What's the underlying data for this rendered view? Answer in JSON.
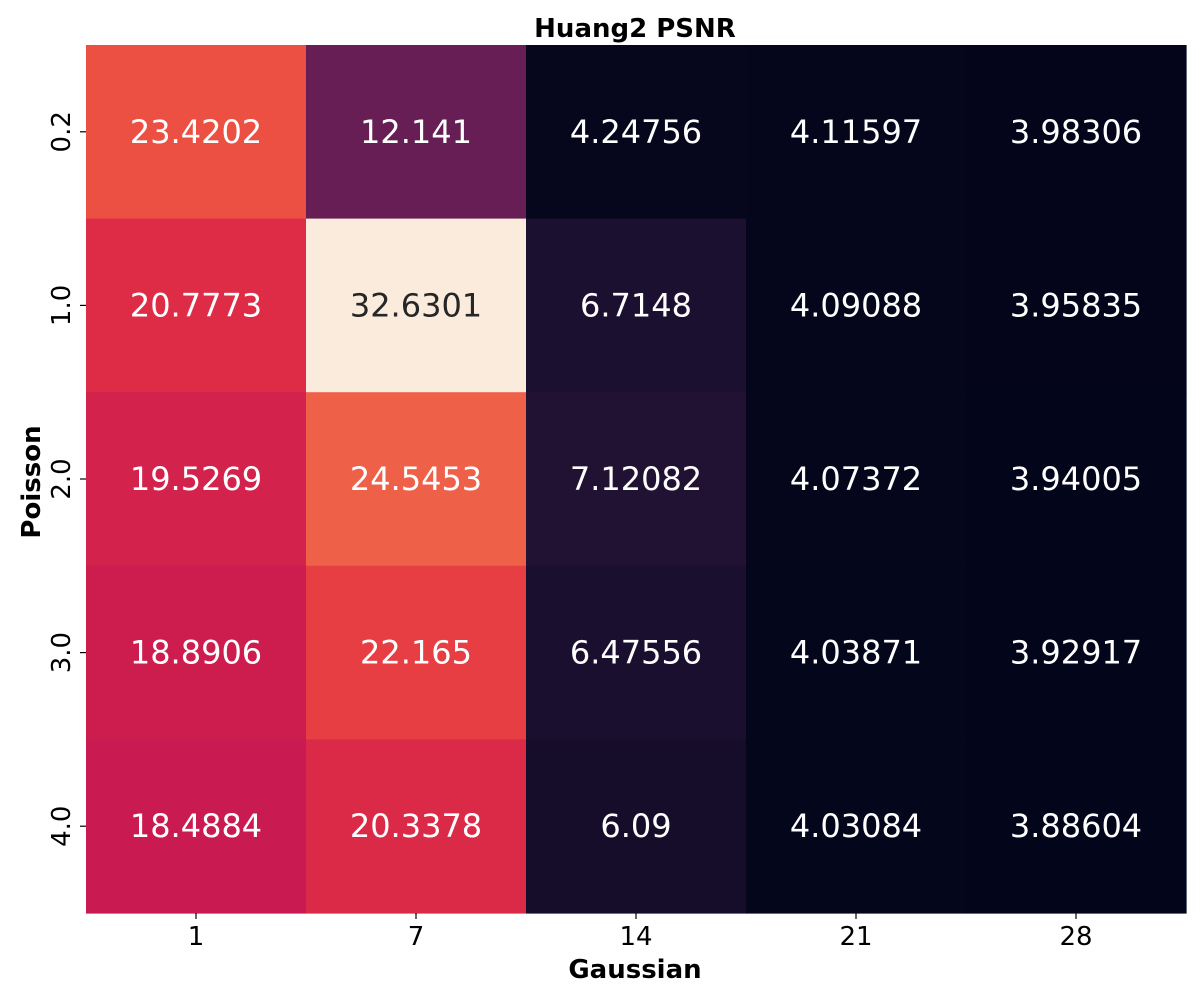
{
  "chart_data": {
    "type": "heatmap",
    "title": "Huang2 PSNR",
    "xlabel": "Gaussian",
    "ylabel": "Poisson",
    "x_categories": [
      "1",
      "7",
      "14",
      "21",
      "28"
    ],
    "y_categories": [
      "0.2",
      "1.0",
      "2.0",
      "3.0",
      "4.0"
    ],
    "values": [
      [
        23.4202,
        12.141,
        4.24756,
        4.11597,
        3.98306
      ],
      [
        20.7773,
        32.6301,
        6.7148,
        4.09088,
        3.95835
      ],
      [
        19.5269,
        24.5453,
        7.12082,
        4.07372,
        3.94005
      ],
      [
        18.8906,
        22.165,
        6.47556,
        4.03871,
        3.92917
      ],
      [
        18.4884,
        20.3378,
        6.09,
        4.03084,
        3.88604
      ]
    ],
    "value_labels": [
      [
        "23.4202",
        "12.141",
        "4.24756",
        "4.11597",
        "3.98306"
      ],
      [
        "20.7773",
        "32.6301",
        "6.7148",
        "4.09088",
        "3.95835"
      ],
      [
        "19.5269",
        "24.5453",
        "7.12082",
        "4.07372",
        "3.94005"
      ],
      [
        "18.8906",
        "22.165",
        "6.47556",
        "4.03871",
        "3.92917"
      ],
      [
        "18.4884",
        "20.3378",
        "6.09",
        "4.03084",
        "3.88604"
      ]
    ],
    "colormap": "rocket",
    "vmin": 3.88604,
    "vmax": 32.6301,
    "colorbar": false,
    "grid": false,
    "legend": "none"
  }
}
